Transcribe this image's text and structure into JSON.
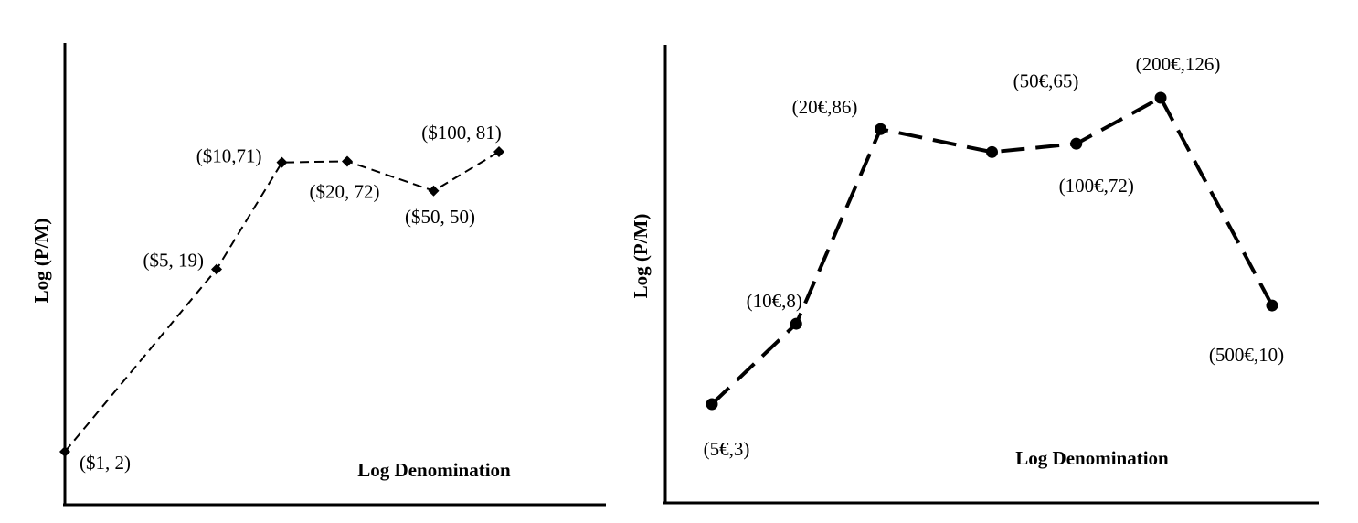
{
  "chart_data": [
    {
      "type": "line",
      "title": "",
      "xlabel": "Log Denomination",
      "ylabel": "Log (P/M)",
      "x_scale": "log",
      "y_scale": "log",
      "marker": "diamond",
      "line_style": "dashed",
      "grid": false,
      "points": [
        {
          "label": "($1, 2)",
          "denomination": "$1",
          "x": 1,
          "y": 2
        },
        {
          "label": "($5, 19)",
          "denomination": "$5",
          "x": 5,
          "y": 19
        },
        {
          "label": "($10,71)",
          "denomination": "$10",
          "x": 10,
          "y": 71
        },
        {
          "label": "($20, 72)",
          "denomination": "$20",
          "x": 20,
          "y": 72
        },
        {
          "label": "($50, 50)",
          "denomination": "$50",
          "x": 50,
          "y": 50
        },
        {
          "label": "($100, 81)",
          "denomination": "$100",
          "x": 100,
          "y": 81
        }
      ]
    },
    {
      "type": "line",
      "title": "",
      "xlabel": "Log Denomination",
      "ylabel": "Log (P/M)",
      "x_scale": "log",
      "y_scale": "log",
      "marker": "circle",
      "line_style": "dashed",
      "grid": false,
      "points": [
        {
          "label": "(5€,3)",
          "denomination": "5€",
          "x": 5,
          "y": 3
        },
        {
          "label": "(10€,8)",
          "denomination": "10€",
          "x": 10,
          "y": 8
        },
        {
          "label": "(20€,86)",
          "denomination": "20€",
          "x": 20,
          "y": 86
        },
        {
          "label": "(50€,65)",
          "denomination": "50€",
          "x": 50,
          "y": 65
        },
        {
          "label": "(100€,72)",
          "denomination": "100€",
          "x": 100,
          "y": 72
        },
        {
          "label": "(200€,126)",
          "denomination": "200€",
          "x": 200,
          "y": 126
        },
        {
          "label": "(500€,10)",
          "denomination": "500€",
          "x": 500,
          "y": 10
        }
      ]
    }
  ]
}
